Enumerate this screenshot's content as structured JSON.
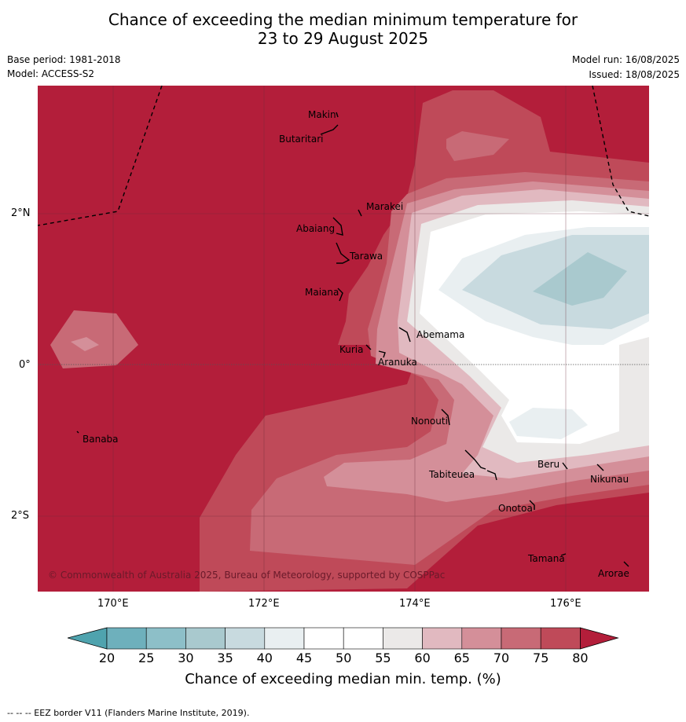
{
  "title_line1": "Chance of exceeding the median minimum temperature for",
  "title_line2": "23 to 29 August 2025",
  "meta": {
    "base_period": "Base period: 1981-2018",
    "model": "Model: ACCESS-S2",
    "model_run": "Model run: 16/08/2025",
    "issued": "Issued: 18/08/2025"
  },
  "copyright": "© Commonwealth of Australia 2025, Bureau of Meteorology, supported by COSPPac",
  "axes": {
    "lon_ticks": [
      "170°E",
      "172°E",
      "174°E",
      "176°E"
    ],
    "lat_ticks": [
      "2°N",
      "0°",
      "2°S"
    ]
  },
  "islands": [
    "Makin",
    "Butaritari",
    "Marakei",
    "Abaiang",
    "Tarawa",
    "Maiana",
    "Abemama",
    "Kuria",
    "Aranuka",
    "Nonouti",
    "Banaba",
    "Tabiteuea",
    "Beru",
    "Nikunau",
    "Onotoa",
    "Tamana",
    "Arorae"
  ],
  "colorbar": {
    "title": "Chance of exceeding median min. temp. (%)",
    "labels": [
      "20",
      "25",
      "30",
      "35",
      "40",
      "45",
      "50",
      "55",
      "60",
      "65",
      "70",
      "75",
      "80"
    ],
    "colors": [
      "#4fa3ae",
      "#6eb0bc",
      "#8dbfc8",
      "#a9c9ce",
      "#c8dadf",
      "#e9eff1",
      "#ffffff",
      "#ffffff",
      "#ebe9e8",
      "#e1b9c0",
      "#d48f99",
      "#c86a76",
      "#bf4a59",
      "#b31e3a"
    ]
  },
  "footer": "--  --  -- EEZ border V11 (Flanders Marine Institute, 2019)."
}
